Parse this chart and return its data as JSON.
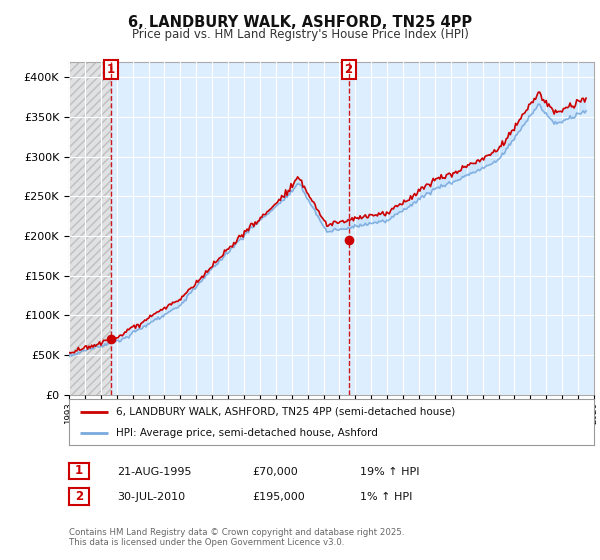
{
  "title": "6, LANDBURY WALK, ASHFORD, TN25 4PP",
  "subtitle": "Price paid vs. HM Land Registry's House Price Index (HPI)",
  "background_color": "#ffffff",
  "plot_bg_color": "#ddeeff",
  "hatch_region_color": "#e8e8e8",
  "grid_color": "#ffffff",
  "ylim": [
    0,
    420000
  ],
  "yticks": [
    0,
    50000,
    100000,
    150000,
    200000,
    250000,
    300000,
    350000,
    400000
  ],
  "ytick_labels": [
    "£0",
    "£50K",
    "£100K",
    "£150K",
    "£200K",
    "£250K",
    "£300K",
    "£350K",
    "£400K"
  ],
  "sale1_date": 1995.65,
  "sale1_price": 70000,
  "sale1_label": "1",
  "sale2_date": 2010.58,
  "sale2_price": 195000,
  "sale2_label": "2",
  "legend_line1": "6, LANDBURY WALK, ASHFORD, TN25 4PP (semi-detached house)",
  "legend_line2": "HPI: Average price, semi-detached house, Ashford",
  "table_row1": [
    "1",
    "21-AUG-1995",
    "£70,000",
    "19% ↑ HPI"
  ],
  "table_row2": [
    "2",
    "30-JUL-2010",
    "£195,000",
    "1% ↑ HPI"
  ],
  "footnote": "Contains HM Land Registry data © Crown copyright and database right 2025.\nThis data is licensed under the Open Government Licence v3.0.",
  "line_color_property": "#cc0000",
  "line_color_hpi": "#7aaadd",
  "marker_color_property": "#cc0000",
  "xmin": 1993,
  "xmax": 2026,
  "fig_width": 6.0,
  "fig_height": 5.6,
  "dpi": 100
}
